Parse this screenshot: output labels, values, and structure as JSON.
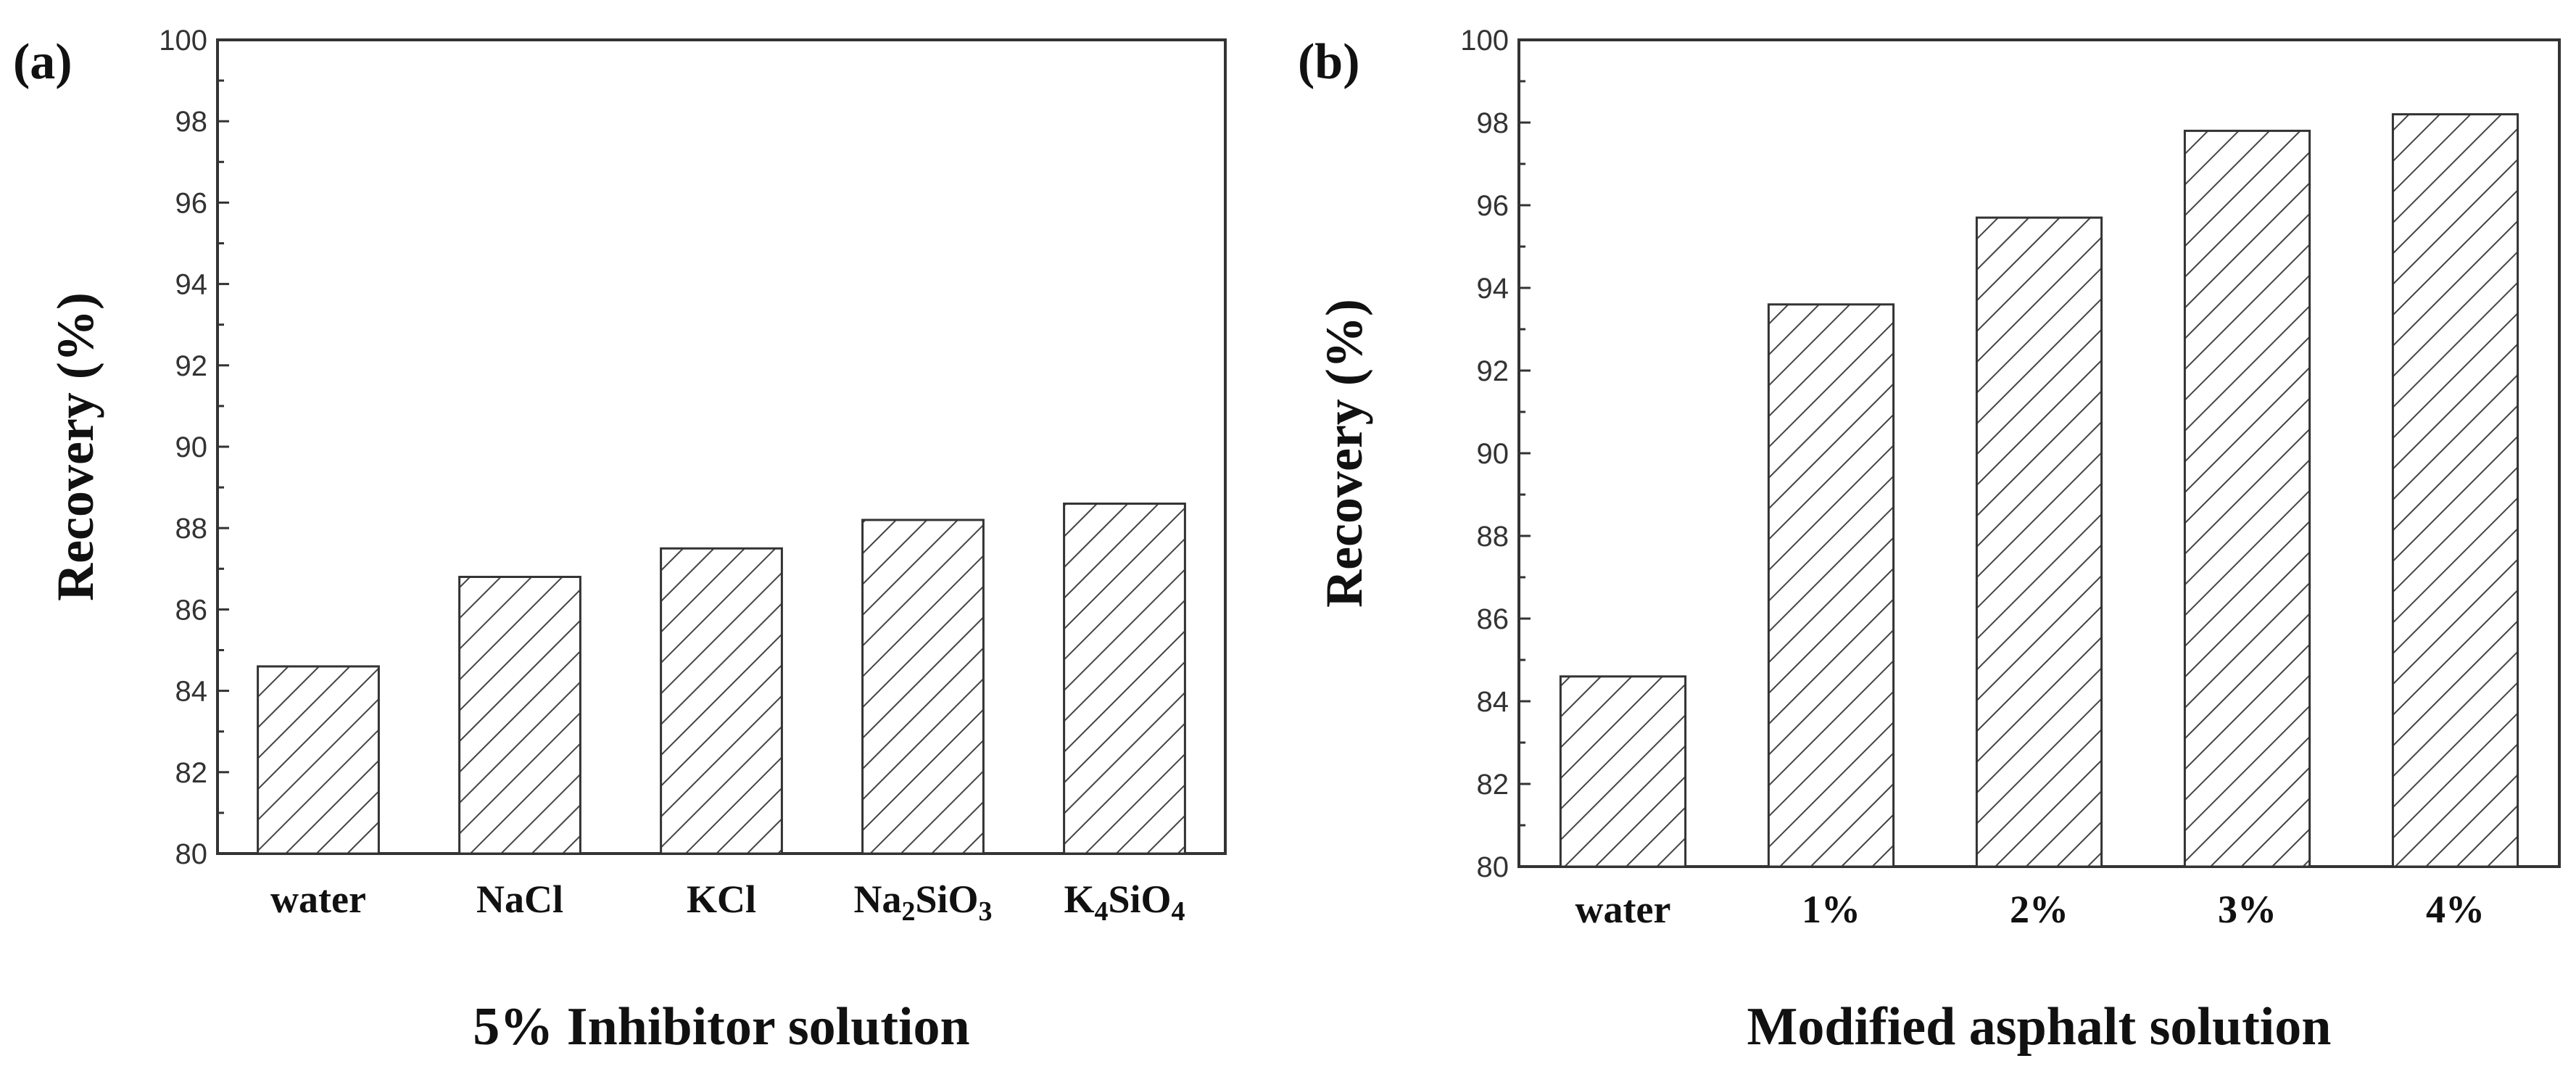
{
  "chart_data": [
    {
      "type": "bar",
      "panel_label": "(a)",
      "categories": [
        {
          "parts": [
            {
              "t": "water"
            }
          ]
        },
        {
          "parts": [
            {
              "t": "NaCl"
            }
          ]
        },
        {
          "parts": [
            {
              "t": "KCl"
            }
          ]
        },
        {
          "parts": [
            {
              "t": "Na"
            },
            {
              "t": "2",
              "sub": true
            },
            {
              "t": "SiO"
            },
            {
              "t": "3",
              "sub": true
            }
          ]
        },
        {
          "parts": [
            {
              "t": "K"
            },
            {
              "t": "4",
              "sub": true
            },
            {
              "t": "SiO"
            },
            {
              "t": "4",
              "sub": true
            }
          ]
        }
      ],
      "values": [
        84.6,
        86.8,
        87.5,
        88.2,
        88.6
      ],
      "xlabel": "5% Inhibitor solution",
      "ylabel": "Recovery (%)",
      "ylim": [
        80,
        100
      ],
      "yticks": [
        80,
        82,
        84,
        86,
        88,
        90,
        92,
        94,
        96,
        98,
        100
      ],
      "pattern": "hatched",
      "grid": false
    },
    {
      "type": "bar",
      "panel_label": "(b)",
      "categories": [
        {
          "parts": [
            {
              "t": "water"
            }
          ]
        },
        {
          "parts": [
            {
              "t": "1%"
            }
          ]
        },
        {
          "parts": [
            {
              "t": "2%"
            }
          ]
        },
        {
          "parts": [
            {
              "t": "3%"
            }
          ]
        },
        {
          "parts": [
            {
              "t": "4%"
            }
          ]
        }
      ],
      "values": [
        84.6,
        93.6,
        95.7,
        97.8,
        98.2
      ],
      "xlabel": "Modified asphalt solution",
      "ylabel": "Recovery (%)",
      "ylim": [
        80,
        100
      ],
      "yticks": [
        80,
        82,
        84,
        86,
        88,
        90,
        92,
        94,
        96,
        98,
        100
      ],
      "pattern": "hatched",
      "grid": false
    }
  ]
}
